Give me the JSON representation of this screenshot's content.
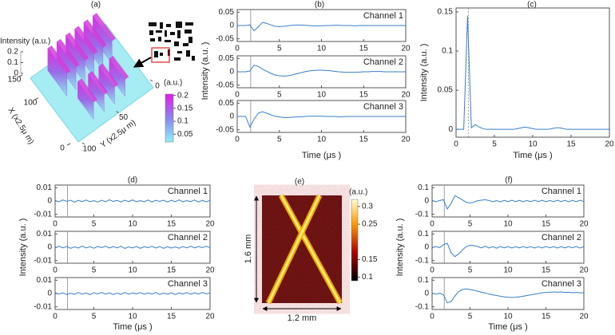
{
  "chart_data": [
    {
      "type": "surface3d",
      "title": "(a)",
      "zlabel": "Intensity (a.u.)",
      "zlim": [
        0,
        0.2
      ],
      "zticks": [
        0,
        0.1,
        0.2
      ],
      "xlabel": "X (x2.5μ m)",
      "xlim": [
        0,
        150
      ],
      "xticks": [
        0,
        100,
        150
      ],
      "ylabel": "Y (x2.5μ m)",
      "ylim": [
        0,
        100
      ],
      "yticks": [
        0,
        50,
        100
      ],
      "colorbar_label": "(a.u.)",
      "clim": [
        0.02,
        0.205
      ],
      "colorbar_ticks": [
        0.05,
        0.1,
        0.15,
        0.2
      ]
    },
    {
      "type": "line",
      "title": "(b)",
      "xlabel": "Time (μs )",
      "ylabel": "Intensity (a.u. )",
      "vline": 1.6,
      "xlim": [
        0,
        20
      ],
      "xticks": [
        0,
        5,
        10,
        15,
        20
      ],
      "ylim": [
        -0.06,
        0.06
      ],
      "yticks": [
        -0.05,
        0,
        0.05
      ],
      "x": [
        0,
        0.5,
        1,
        1.5,
        2,
        2.5,
        3,
        3.5,
        4,
        4.5,
        5,
        5.5,
        6,
        6.5,
        7,
        7.5,
        8,
        8.5,
        9,
        9.5,
        10,
        10.5,
        11,
        11.5,
        12,
        12.5,
        13,
        13.5,
        14,
        14.5,
        15,
        15.5,
        16,
        16.5,
        17,
        17.5,
        18,
        18.5,
        19,
        19.5,
        20
      ],
      "series": [
        {
          "name": "Channel 1",
          "color": "#3a7dc9",
          "values": [
            0,
            0,
            0,
            0.002,
            -0.02,
            -0.005,
            0.012,
            0.008,
            0.002,
            -0.003,
            -0.004,
            -0.003,
            -0.001,
            0.001,
            0.002,
            0.002,
            0.001,
            0,
            -0.001,
            -0.001,
            -0.001,
            0,
            0,
            0.001,
            0.001,
            0,
            0,
            0,
            -0.001,
            0,
            0,
            0,
            0,
            0,
            0,
            0,
            0,
            0,
            0,
            0,
            0
          ]
        },
        {
          "name": "Channel 2",
          "color": "#3a7dc9",
          "values": [
            0,
            0,
            0,
            0.003,
            0.025,
            0.02,
            0.01,
            0.002,
            -0.006,
            -0.012,
            -0.015,
            -0.016,
            -0.015,
            -0.012,
            -0.008,
            -0.004,
            0,
            0.003,
            0.005,
            0.006,
            0.006,
            0.005,
            0.004,
            0.002,
            0,
            -0.001,
            -0.002,
            -0.002,
            -0.002,
            -0.001,
            0,
            0,
            0.001,
            0.001,
            0.001,
            0,
            0,
            0,
            0,
            0,
            0
          ]
        },
        {
          "name": "Channel 3",
          "color": "#3a7dc9",
          "values": [
            0,
            0,
            0,
            -0.04,
            -0.01,
            0.012,
            0.018,
            0.012,
            0.006,
            0.001,
            -0.002,
            -0.004,
            -0.004,
            -0.003,
            -0.002,
            -0.001,
            0,
            0.001,
            0.001,
            0.001,
            0.001,
            0,
            0,
            0,
            -0.001,
            -0.001,
            0,
            0,
            0,
            0,
            0,
            0,
            0,
            0,
            0,
            0,
            0,
            0,
            0,
            0,
            0
          ]
        }
      ]
    },
    {
      "type": "line",
      "title": "(c)",
      "xlabel": "Time (μs )",
      "ylabel": "Intensity (a.u. )",
      "vline": 1.6,
      "xlim": [
        0,
        20
      ],
      "xticks": [
        0,
        5,
        10,
        15,
        20
      ],
      "ylim": [
        -0.01,
        0.155
      ],
      "yticks": [
        0,
        0.05,
        0.1,
        0.15
      ],
      "x": [
        0,
        0.5,
        1,
        1.5,
        2,
        2.5,
        3,
        3.5,
        4,
        4.5,
        5,
        5.5,
        6,
        6.5,
        7,
        7.5,
        8,
        8.5,
        9,
        9.5,
        10,
        10.5,
        11,
        11.5,
        12,
        12.5,
        13,
        13.5,
        14,
        14.5,
        15,
        15.5,
        16,
        16.5,
        17,
        17.5,
        18,
        18.5,
        19,
        19.5,
        20
      ],
      "series": [
        {
          "color": "#3a7dc9",
          "values": [
            0,
            0,
            0,
            0.145,
            0.002,
            0.006,
            0.003,
            0.001,
            0,
            0,
            0,
            0,
            0,
            0,
            0,
            0,
            0.001,
            0.002,
            0.003,
            0.002,
            0.001,
            0,
            0,
            0,
            0,
            0.001,
            0.002,
            0.002,
            0.001,
            0,
            0,
            0,
            0,
            0,
            0,
            0,
            0,
            0,
            0,
            0,
            0
          ]
        }
      ]
    },
    {
      "type": "line",
      "title": "(d)",
      "xlabel": "Time (μs )",
      "ylabel": "Intensity (a.u. )",
      "vline": 1.6,
      "xlim": [
        0,
        20
      ],
      "xticks": [
        0,
        5,
        10,
        15,
        20
      ],
      "ylim": [
        -0.012,
        0.012
      ],
      "yticks": [
        -0.01,
        0,
        0.01
      ],
      "x": [
        0,
        0.5,
        1,
        1.5,
        2,
        2.5,
        3,
        3.5,
        4,
        4.5,
        5,
        5.5,
        6,
        6.5,
        7,
        7.5,
        8,
        8.5,
        9,
        9.5,
        10,
        10.5,
        11,
        11.5,
        12,
        12.5,
        13,
        13.5,
        14,
        14.5,
        15,
        15.5,
        16,
        16.5,
        17,
        17.5,
        18,
        18.5,
        19,
        19.5,
        20
      ],
      "series": [
        {
          "name": "Channel 1",
          "color": "#3a7dc9",
          "values": [
            0.0004,
            -0.0006,
            0.0008,
            -0.0003,
            0.0006,
            -0.0009,
            0.0005,
            -0.0004,
            0.0007,
            -0.0006,
            0.0003,
            -0.0008,
            0.0006,
            -0.0005,
            0.0009,
            -0.0003,
            0.0004,
            -0.0007,
            0.0006,
            -0.0004,
            0.0008,
            -0.0005,
            0.0003,
            -0.0006,
            0.0007,
            -0.0008,
            0.0005,
            -0.0003,
            0.0006,
            -0.0007,
            0.0004,
            -0.0005,
            0.0008,
            -0.0006,
            0.0003,
            -0.0004,
            0.0007,
            -0.0008,
            0.0005,
            -0.0006,
            0.0004
          ]
        },
        {
          "name": "Channel 2",
          "color": "#3a7dc9",
          "values": [
            -0.0005,
            0.0007,
            -0.0004,
            0.0006,
            -0.0008,
            0.0003,
            -0.0006,
            0.0009,
            -0.0005,
            0.0004,
            -0.0007,
            0.0006,
            -0.0003,
            0.0008,
            -0.0006,
            0.0005,
            -0.0004,
            0.0007,
            -0.0009,
            0.0003,
            -0.0005,
            0.0006,
            -0.0008,
            0.0004,
            -0.0003,
            0.0007,
            -0.0006,
            0.0005,
            -0.0008,
            0.0004,
            -0.0006,
            0.0003,
            -0.0007,
            0.0005,
            -0.0004,
            0.0008,
            -0.0005,
            0.0006,
            -0.0003,
            0.0007,
            -0.0004
          ]
        },
        {
          "name": "Channel 3",
          "color": "#3a7dc9",
          "values": [
            0.0006,
            -0.0004,
            0.0005,
            -0.0008,
            0.0003,
            -0.0006,
            0.0007,
            -0.0005,
            0.0004,
            -0.0009,
            0.0006,
            -0.0003,
            0.0008,
            -0.0004,
            0.0005,
            -0.0007,
            0.0003,
            -0.0006,
            0.0008,
            -0.0005,
            0.0004,
            -0.0003,
            0.0007,
            -0.0006,
            0.0005,
            -0.0004,
            0.0008,
            -0.0007,
            0.0003,
            -0.0005,
            0.0006,
            -0.0008,
            0.0004,
            -0.0003,
            0.0007,
            -0.0005,
            0.0006,
            -0.0004,
            0.0008,
            -0.0003,
            0.0005
          ]
        }
      ]
    },
    {
      "type": "heatmap",
      "title": "(e)",
      "colorbar_label": "(a.u.)",
      "clim": [
        0.09,
        0.32
      ],
      "colorbar_ticks": [
        0.1,
        0.15,
        0.25,
        0.3
      ],
      "height_label": "1.6 mm",
      "width_label": "1.2 mm"
    },
    {
      "type": "line",
      "title": "(f)",
      "xlabel": "Time (μs )",
      "ylabel": "Intensity (a.u. )",
      "vline": 1.6,
      "xlim": [
        0,
        20
      ],
      "xticks": [
        0,
        5,
        10,
        15,
        20
      ],
      "ylim": [
        -0.12,
        0.12
      ],
      "yticks": [
        -0.1,
        0,
        0.1
      ],
      "x": [
        0,
        0.5,
        1,
        1.5,
        2,
        2.5,
        3,
        3.5,
        4,
        4.5,
        5,
        5.5,
        6,
        6.5,
        7,
        7.5,
        8,
        8.5,
        9,
        9.5,
        10,
        10.5,
        11,
        11.5,
        12,
        12.5,
        13,
        13.5,
        14,
        14.5,
        15,
        15.5,
        16,
        16.5,
        17,
        17.5,
        18,
        18.5,
        19,
        19.5,
        20
      ],
      "series": [
        {
          "name": "Channel 1",
          "color": "#3a7dc9",
          "values": [
            0.005,
            -0.006,
            0.004,
            0.01,
            -0.06,
            -0.02,
            0.04,
            0.025,
            0.008,
            -0.01,
            -0.015,
            -0.008,
            0.002,
            0.006,
            0.01,
            0.004,
            -0.005,
            0.003,
            -0.006,
            0.004,
            -0.005,
            0.006,
            -0.004,
            0.005,
            -0.006,
            0.004,
            -0.005,
            0.006,
            -0.004,
            0.005,
            -0.006,
            0.004,
            -0.005,
            0.006,
            -0.004,
            0.005,
            -0.006,
            0.004,
            -0.005,
            0.006,
            -0.004
          ]
        },
        {
          "name": "Channel 2",
          "color": "#3a7dc9",
          "values": [
            -0.004,
            0.005,
            -0.003,
            0.02,
            0.03,
            -0.04,
            -0.07,
            -0.05,
            -0.02,
            0.005,
            0.015,
            0.012,
            0.006,
            -0.005,
            0.008,
            -0.006,
            0.005,
            -0.007,
            0.006,
            -0.004,
            0.005,
            -0.006,
            0.004,
            -0.005,
            0.006,
            -0.004,
            0.005,
            -0.006,
            0.004,
            -0.005,
            0.006,
            -0.004,
            0.005,
            -0.006,
            0.004,
            -0.005,
            0.006,
            -0.004,
            0.005,
            -0.006,
            0.004
          ]
        },
        {
          "name": "Channel 3",
          "color": "#3a7dc9",
          "values": [
            0.004,
            -0.005,
            0.003,
            -0.01,
            -0.07,
            -0.06,
            -0.02,
            0.015,
            0.03,
            0.035,
            0.03,
            0.025,
            0.018,
            0.01,
            0.004,
            -0.004,
            -0.01,
            -0.015,
            -0.02,
            -0.025,
            -0.028,
            -0.03,
            -0.028,
            -0.025,
            -0.02,
            -0.015,
            -0.01,
            -0.005,
            0,
            0.005,
            0.008,
            0.01,
            0.012,
            0.01,
            0.012,
            0.008,
            0.01,
            0.006,
            0.008,
            0.005,
            0.006
          ]
        }
      ]
    }
  ]
}
